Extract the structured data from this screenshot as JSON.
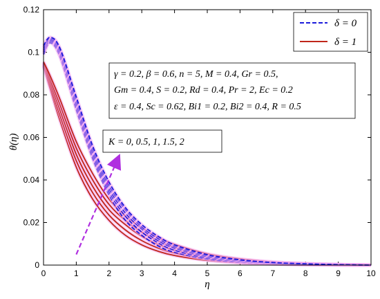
{
  "chart_data": {
    "type": "line",
    "xlabel": "η",
    "ylabel": "θ(η)",
    "xlim": [
      0,
      10
    ],
    "ylim": [
      0,
      0.12
    ],
    "xticks": [
      "0",
      "1",
      "2",
      "3",
      "4",
      "5",
      "6",
      "7",
      "8",
      "9",
      "10"
    ],
    "yticks": [
      "0",
      "0.02",
      "0.04",
      "0.06",
      "0.08",
      "0.1",
      "0.12"
    ],
    "legend_position": "top-right",
    "legend": [
      {
        "label": "δ = 0",
        "style": "dashed",
        "color": "#1a1adb"
      },
      {
        "label": "δ = 1",
        "style": "solid",
        "color": "#c0261a"
      }
    ],
    "parameter_box": [
      "γ = 0.2, β = 0.6, n = 5, M = 0.4, Gr = 0.5,",
      "Gm = 0.4, S = 0.2, Rd = 0.4, Pr = 2, Ec = 0.2",
      "ε = 0.4, Sc = 0.62, Bi1 = 0.2, Bi2 = 0.4, R = 0.5"
    ],
    "annotation": "K = 0, 0.5, 1, 1.5, 2",
    "arrow": {
      "from": [
        1,
        0.005
      ],
      "to": [
        2.3,
        0.051
      ],
      "color": "#b030e0"
    },
    "x": [
      0,
      0.2,
      0.5,
      1,
      1.5,
      2,
      2.5,
      3,
      3.5,
      4,
      5,
      6,
      7,
      8,
      9,
      10
    ],
    "series": [
      {
        "group": "δ = 0",
        "K": "0",
        "values": [
          0.099,
          0.1045,
          0.098,
          0.073,
          0.05,
          0.033,
          0.021,
          0.014,
          0.009,
          0.006,
          0.0028,
          0.0013,
          0.0006,
          0.0003,
          0.0001,
          0
        ]
      },
      {
        "group": "δ = 0",
        "K": "0.5",
        "values": [
          0.1,
          0.1052,
          0.099,
          0.0745,
          0.0515,
          0.0345,
          0.023,
          0.0155,
          0.0105,
          0.007,
          0.0033,
          0.0016,
          0.0008,
          0.0004,
          0.0001,
          0
        ]
      },
      {
        "group": "δ = 0",
        "K": "1",
        "values": [
          0.101,
          0.1058,
          0.1,
          0.076,
          0.053,
          0.036,
          0.0245,
          0.017,
          0.0115,
          0.008,
          0.0039,
          0.0019,
          0.0009,
          0.0004,
          0.0002,
          0
        ]
      },
      {
        "group": "δ = 0",
        "K": "1.5",
        "values": [
          0.102,
          0.1064,
          0.101,
          0.0775,
          0.0545,
          0.0375,
          0.026,
          0.018,
          0.0125,
          0.0088,
          0.0044,
          0.0022,
          0.0011,
          0.0005,
          0.0002,
          0
        ]
      },
      {
        "group": "δ = 0",
        "K": "2",
        "values": [
          0.103,
          0.107,
          0.102,
          0.079,
          0.056,
          0.039,
          0.027,
          0.019,
          0.0135,
          0.0095,
          0.0049,
          0.0025,
          0.0012,
          0.0006,
          0.0002,
          0
        ]
      },
      {
        "group": "δ = 1",
        "K": "0",
        "values": [
          0.0935,
          0.083,
          0.068,
          0.046,
          0.031,
          0.021,
          0.014,
          0.0095,
          0.0065,
          0.0045,
          0.0022,
          0.0011,
          0.0005,
          0.0002,
          0.0001,
          0
        ]
      },
      {
        "group": "δ = 1",
        "K": "0.5",
        "values": [
          0.094,
          0.0845,
          0.0705,
          0.049,
          0.034,
          0.0235,
          0.0165,
          0.0115,
          0.008,
          0.0057,
          0.0029,
          0.0015,
          0.0007,
          0.0003,
          0.0001,
          0
        ]
      },
      {
        "group": "δ = 1",
        "K": "1",
        "values": [
          0.0945,
          0.086,
          0.073,
          0.052,
          0.037,
          0.026,
          0.019,
          0.0135,
          0.0097,
          0.007,
          0.0037,
          0.0019,
          0.0009,
          0.0004,
          0.0002,
          0
        ]
      },
      {
        "group": "δ = 1",
        "K": "1.5",
        "values": [
          0.095,
          0.0875,
          0.0755,
          0.055,
          0.04,
          0.0285,
          0.021,
          0.0155,
          0.0114,
          0.0083,
          0.0045,
          0.0024,
          0.0012,
          0.0006,
          0.0002,
          0
        ]
      },
      {
        "group": "δ = 1",
        "K": "2",
        "values": [
          0.0955,
          0.089,
          0.078,
          0.058,
          0.043,
          0.031,
          0.023,
          0.0175,
          0.013,
          0.0097,
          0.0053,
          0.0029,
          0.0015,
          0.0007,
          0.0003,
          0
        ]
      }
    ]
  }
}
